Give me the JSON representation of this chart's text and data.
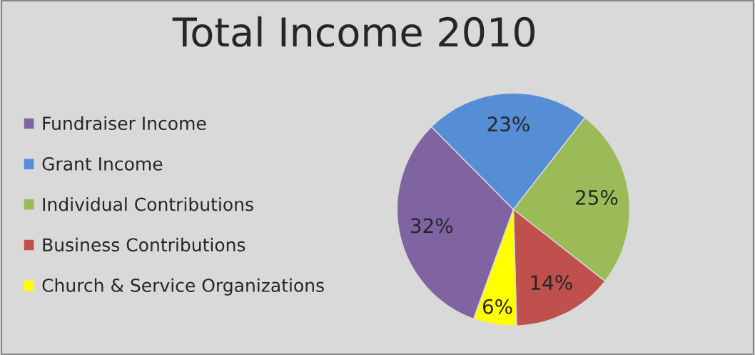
{
  "chart_data": {
    "type": "pie",
    "title": "Total Income 2010",
    "categories": [
      "Fundraiser Income",
      "Grant Income",
      "Individual Contributions",
      "Business Contributions",
      "Church & Service Organizations"
    ],
    "values": [
      32,
      23,
      25,
      14,
      6
    ],
    "colors": [
      "#8064a2",
      "#558ed5",
      "#9bbb59",
      "#c0504d",
      "#ffff00"
    ],
    "value_labels": [
      "32%",
      "23%",
      "25%",
      "14%",
      "6%"
    ],
    "legend": "left"
  }
}
